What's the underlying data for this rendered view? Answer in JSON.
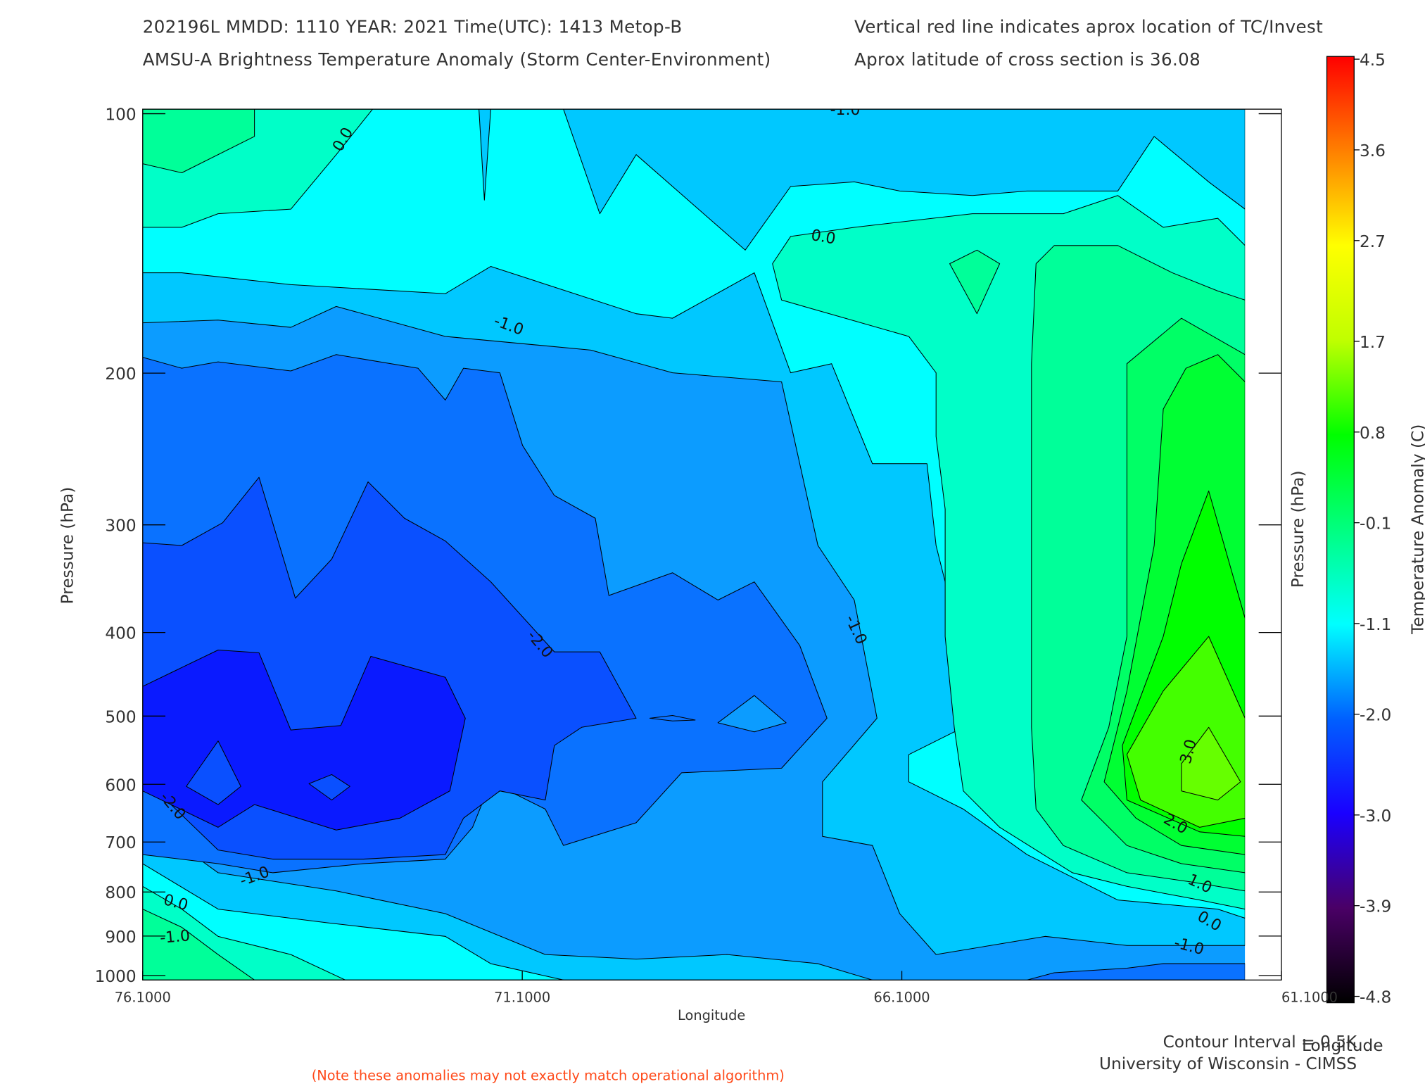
{
  "chart_data": {
    "type": "contour",
    "title_lines": [
      "202196L  MMDD: 1110 YEAR: 2021 Time(UTC): 1413 Metop-B",
      "AMSU-A Brightness Temperature Anomaly (Storm Center-Environment)"
    ],
    "info_lines": [
      "Vertical red line indicates aprox location of TC/Invest",
      "Aprox latitude of cross section is 36.08"
    ],
    "x_label": "Longitude",
    "y_label": "Pressure (hPa)",
    "y2_label": "Pressure (hPa)",
    "xlim": [
      76.1,
      61.1
    ],
    "xticks": [
      {
        "value": 76.1,
        "label": "76.1000"
      },
      {
        "value": 71.1,
        "label": "71.1000"
      },
      {
        "value": 66.1,
        "label": "66.1000"
      },
      {
        "value": 61.1,
        "label": "61.1000"
      }
    ],
    "ylim": [
      100,
      1000
    ],
    "y_log_scale": true,
    "yticks": [
      100,
      200,
      300,
      400,
      500,
      600,
      700,
      800,
      900,
      1000
    ],
    "grid": false,
    "contour_labels": [
      "-1.0",
      "0.0",
      "0.0",
      "-1.0",
      "-2.0",
      "-1.0",
      "-2.0",
      "-1.0",
      "0.0",
      "-1.0",
      "3.0",
      "2.0",
      "1.0",
      "0.0",
      "-1.0"
    ],
    "colorbar": {
      "label": "Temperature Anomaly (C)",
      "lim": [
        -4.8,
        4.5
      ],
      "ticks": [
        4.5,
        3.6,
        2.7,
        1.7,
        0.8,
        -0.1,
        -1.1,
        {
          "value": -2,
          "label": "-2.0"
        },
        {
          "value": -3,
          "label": "-3.0"
        },
        -3.9,
        -4.8
      ],
      "colors": [
        "#000000",
        "#4a0066",
        "#1a00ff",
        "#0060ff",
        "#00ffff",
        "#00ff80",
        "#00ff00",
        "#c0ff00",
        "#ffff00",
        "#ff8000",
        "#ff0000"
      ]
    },
    "footer_lines": [
      "Contour Interval = 0.5K",
      "University of Wisconsin - CIMSS"
    ],
    "corner_label": "Longitude",
    "note": "(Note these anomalies may not exactly match operational algorithm)"
  }
}
